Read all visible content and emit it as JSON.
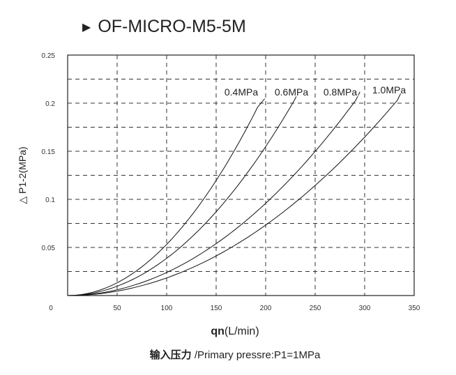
{
  "chart_data": {
    "type": "line",
    "title": "OF-MICRO-M5-5M",
    "xlabel_bold": "qn",
    "xlabel_unit": "(L/min)",
    "ylabel": "△ P1-2(MPa)",
    "subtitle_bold": "输入压力",
    "subtitle": " /Primary pressre:P1=1MPa",
    "xlim": [
      0,
      350
    ],
    "ylim": [
      0,
      0.25
    ],
    "xticks": [
      0,
      50,
      100,
      150,
      200,
      250,
      300,
      350
    ],
    "xtick_labels": [
      "0",
      "50",
      "100",
      "150",
      "200",
      "250",
      "300",
      "350"
    ],
    "yticks": [
      0.05,
      0.1,
      0.15,
      0.2,
      0.25
    ],
    "ytick_labels": [
      "0.05",
      "0.1",
      "0.15",
      "0.2",
      "0.25"
    ],
    "grid": true,
    "series": [
      {
        "name": "0.4MPa",
        "x": [
          0,
          50,
          100,
          150,
          192
        ],
        "y": [
          0,
          0.0133,
          0.053,
          0.12,
          0.196
        ]
      },
      {
        "name": "0.6MPa",
        "x": [
          0,
          50,
          100,
          150,
          200,
          229
        ],
        "y": [
          0,
          0.0097,
          0.0387,
          0.087,
          0.155,
          0.203
        ]
      },
      {
        "name": "0.8MPa",
        "x": [
          0,
          50,
          100,
          150,
          200,
          250,
          291
        ],
        "y": [
          0,
          0.006,
          0.024,
          0.054,
          0.096,
          0.15,
          0.203
        ]
      },
      {
        "name": "1.0MPa",
        "x": [
          0,
          50,
          100,
          150,
          200,
          250,
          300,
          333
        ],
        "y": [
          0,
          0.0046,
          0.0183,
          0.041,
          0.073,
          0.114,
          0.165,
          0.203
        ]
      }
    ]
  }
}
